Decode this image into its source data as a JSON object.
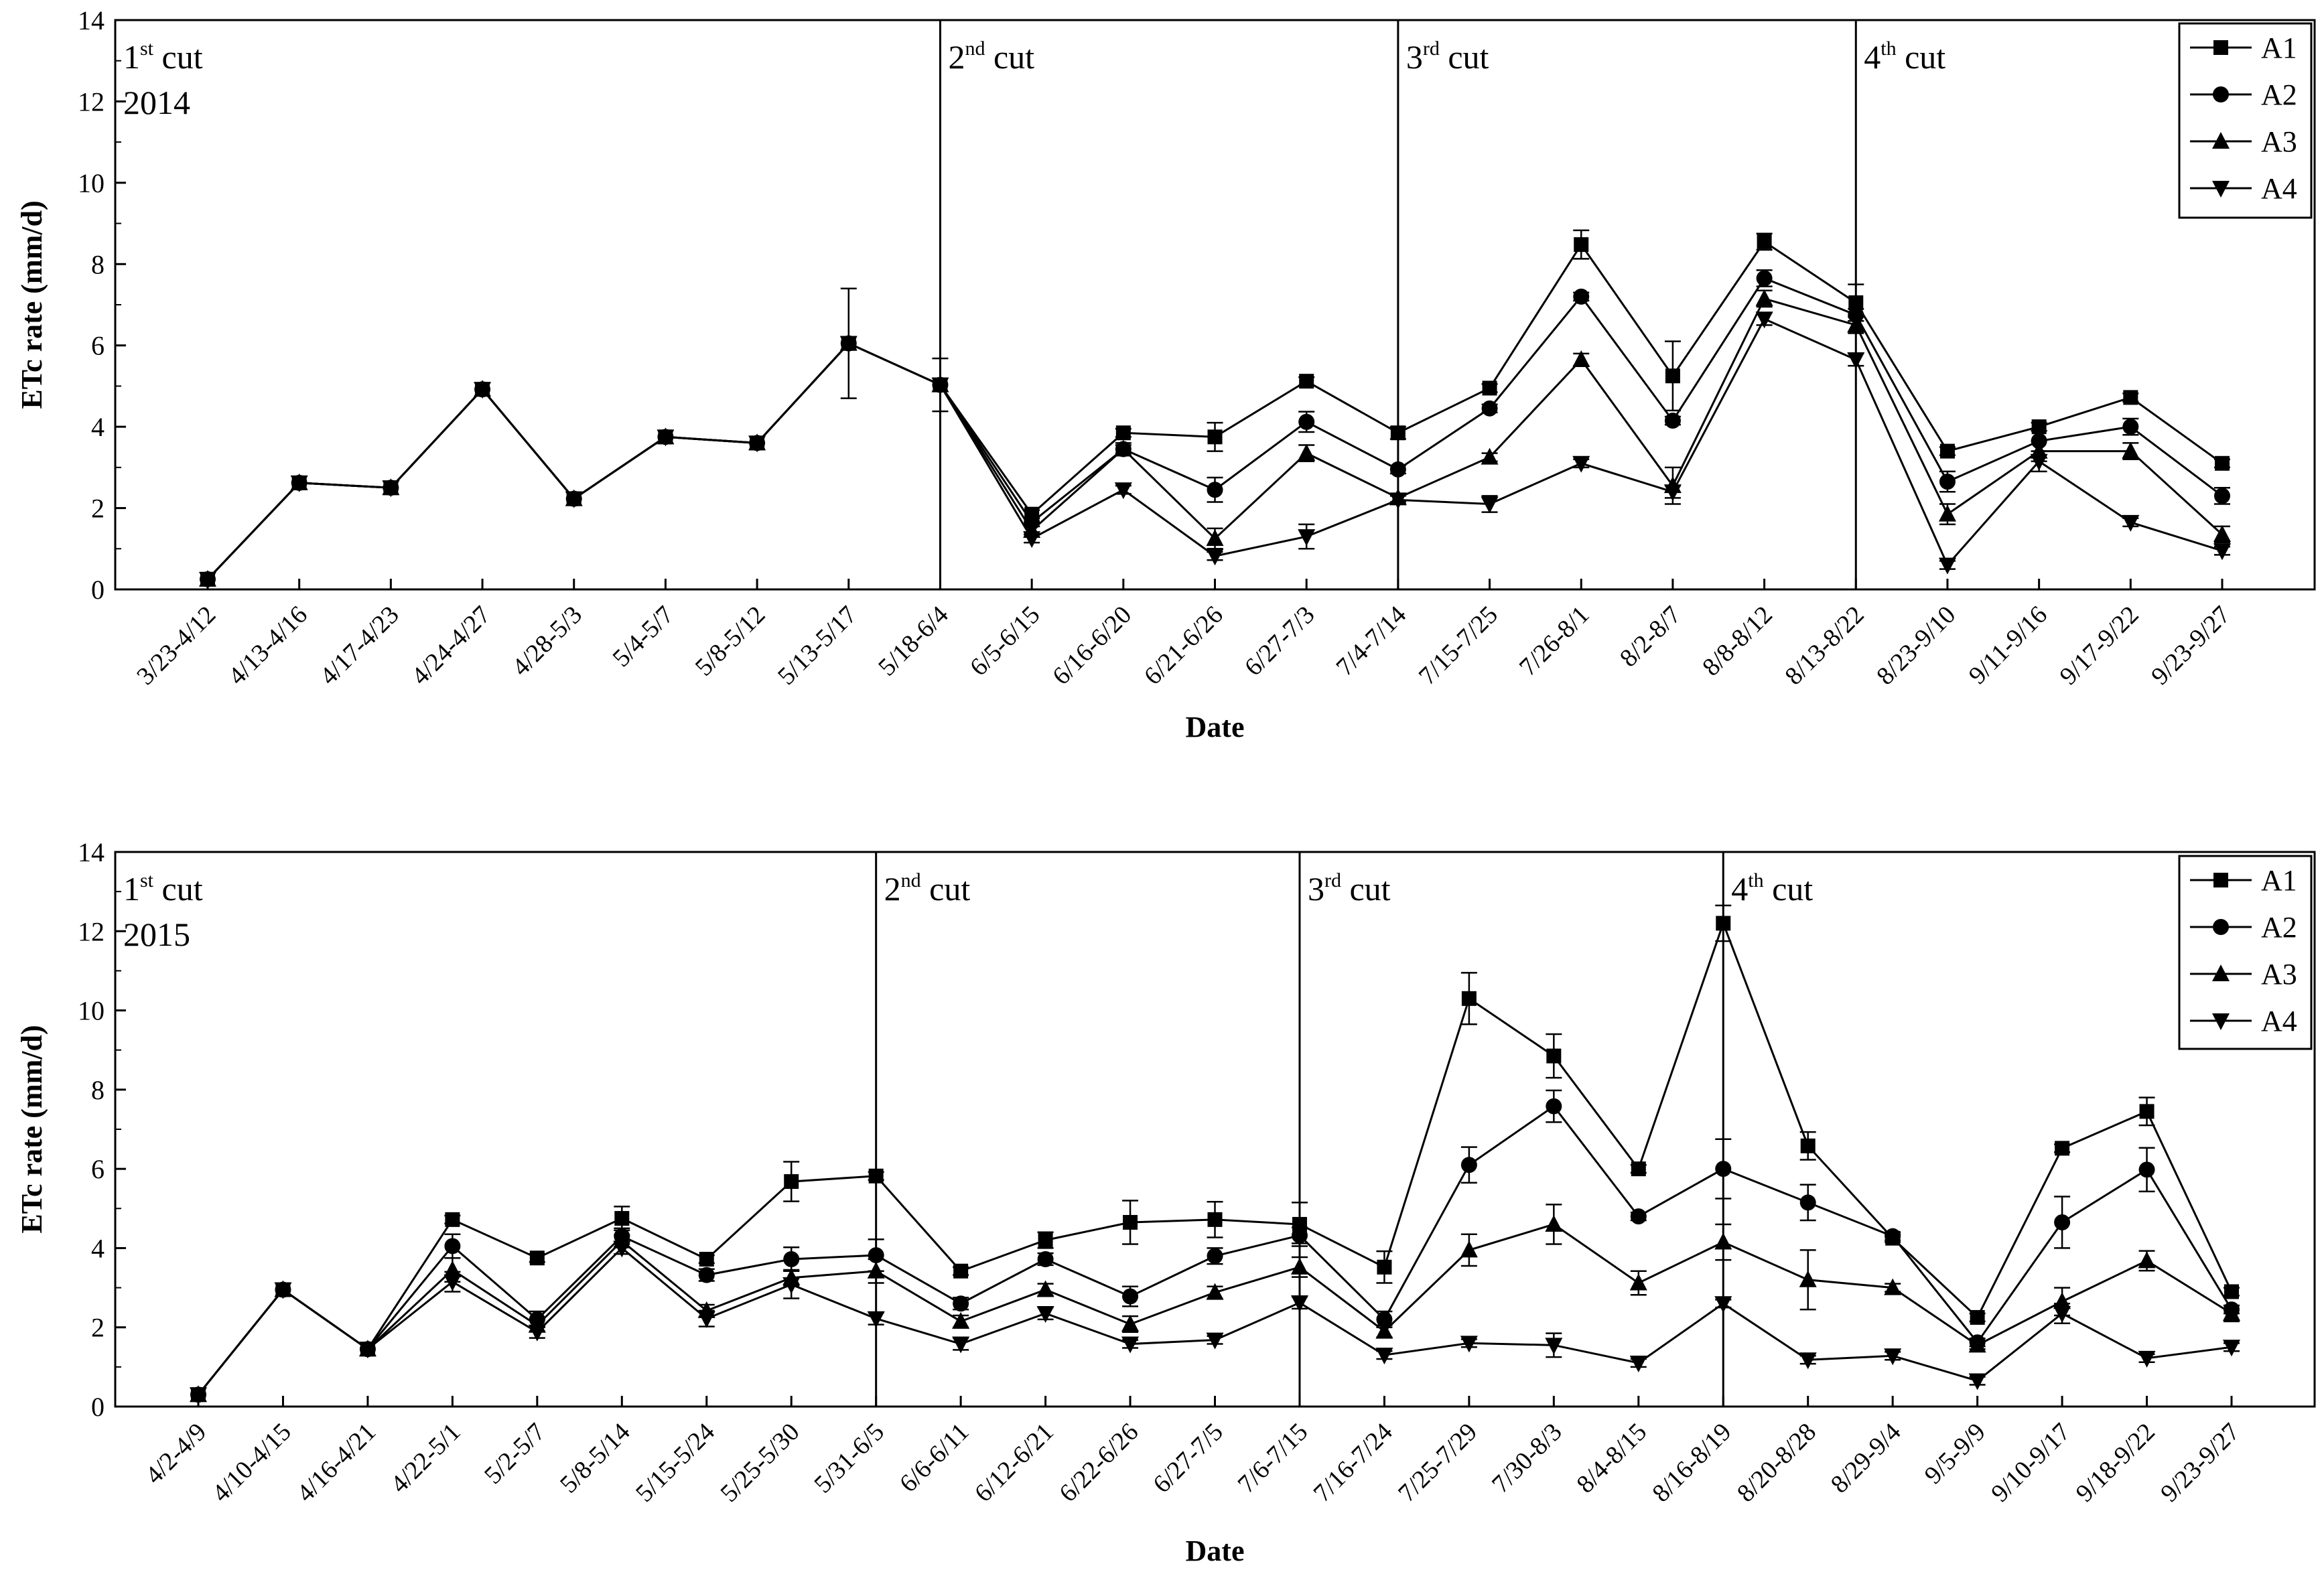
{
  "chart_data": [
    {
      "type": "line",
      "year_label": "2014",
      "xlabel": "Date",
      "ylabel": "ETc rate (mm/d)",
      "ylim": [
        0,
        14
      ],
      "yticks": [
        "0",
        "2",
        "4",
        "6",
        "8",
        "10",
        "12",
        "14"
      ],
      "legend_position": "top-right",
      "categories": [
        "3/23-4/12",
        "4/13-4/16",
        "4/17-4/23",
        "4/24-4/27",
        "4/28-5/3",
        "5/4-5/7",
        "5/8-5/12",
        "5/13-5/17",
        "5/18-6/4",
        "6/5-6/15",
        "6/16-6/20",
        "6/21-6/26",
        "6/27-7/3",
        "7/4-7/14",
        "7/15-7/25",
        "7/26-8/1",
        "8/2-8/7",
        "8/8-8/12",
        "8/13-8/22",
        "8/23-9/10",
        "9/11-9/16",
        "9/17-9/22",
        "9/23-9/27"
      ],
      "cuts": [
        {
          "num": "1",
          "sup": "st",
          "word": "cut",
          "category_index": 0
        },
        {
          "num": "2",
          "sup": "nd",
          "word": "cut",
          "category_index": 8
        },
        {
          "num": "3",
          "sup": "rd",
          "word": "cut",
          "category_index": 13
        },
        {
          "num": "4",
          "sup": "th",
          "word": "cut",
          "category_index": 18
        }
      ],
      "series": [
        {
          "name": "A1",
          "marker": "square",
          "values": [
            0.25,
            2.62,
            2.5,
            4.92,
            2.23,
            3.75,
            3.6,
            6.05,
            5.03,
            1.85,
            3.85,
            3.75,
            5.12,
            3.85,
            4.95,
            8.48,
            5.25,
            8.55,
            7.05,
            3.4,
            4.0,
            4.72,
            3.1
          ],
          "errors": [
            0,
            0,
            0,
            0,
            0,
            0,
            0,
            1.35,
            0.65,
            0.1,
            0.1,
            0.35,
            0.1,
            0.15,
            0.1,
            0.35,
            0.85,
            0.2,
            0.45,
            0.1,
            0.1,
            0.1,
            0.1
          ]
        },
        {
          "name": "A2",
          "marker": "circle",
          "values": [
            0.25,
            2.62,
            2.5,
            4.92,
            2.23,
            3.75,
            3.6,
            6.05,
            5.03,
            1.65,
            3.45,
            2.45,
            4.12,
            2.95,
            4.45,
            7.2,
            4.15,
            7.65,
            6.75,
            2.65,
            3.65,
            4.0,
            2.3
          ],
          "errors": [
            0,
            0,
            0,
            0,
            0,
            0,
            0,
            0,
            0,
            0.1,
            0.15,
            0.3,
            0.25,
            0.1,
            0.1,
            0.1,
            0.1,
            0.2,
            0.15,
            0.25,
            0.25,
            0.2,
            0.2
          ]
        },
        {
          "name": "A3",
          "marker": "triangle-up",
          "values": [
            0.25,
            2.62,
            2.5,
            4.92,
            2.23,
            3.75,
            3.6,
            6.05,
            5.03,
            1.45,
            3.45,
            1.25,
            3.35,
            2.25,
            3.25,
            5.65,
            2.55,
            7.15,
            6.5,
            1.85,
            3.4,
            3.4,
            1.35
          ],
          "errors": [
            0,
            0,
            0,
            0,
            0,
            0,
            0,
            0,
            0,
            0.1,
            0.1,
            0.25,
            0.2,
            0.1,
            0.1,
            0.15,
            0.45,
            0.2,
            0.2,
            0.25,
            0.25,
            0.2,
            0.2
          ]
        },
        {
          "name": "A4",
          "marker": "triangle-down",
          "values": [
            0.25,
            2.62,
            2.5,
            4.92,
            2.23,
            3.75,
            3.6,
            6.05,
            5.03,
            1.25,
            2.45,
            0.82,
            1.3,
            2.2,
            2.1,
            3.1,
            2.4,
            6.65,
            5.65,
            0.6,
            3.15,
            1.65,
            0.95
          ],
          "errors": [
            0,
            0,
            0,
            0,
            0,
            0,
            0,
            0,
            0,
            0.1,
            0.1,
            0.1,
            0.3,
            0.1,
            0.2,
            0.1,
            0.15,
            0.15,
            0.15,
            0.1,
            0.25,
            0.1,
            0.1
          ]
        }
      ]
    },
    {
      "type": "line",
      "year_label": "2015",
      "xlabel": "Date",
      "ylabel": "ETc rate (mm/d)",
      "ylim": [
        0,
        14
      ],
      "yticks": [
        "0",
        "2",
        "4",
        "6",
        "8",
        "10",
        "12",
        "14"
      ],
      "legend_position": "top-right",
      "categories": [
        "4/2-4/9",
        "4/10-4/15",
        "4/16-4/21",
        "4/22-5/1",
        "5/2-5/7",
        "5/8-5/14",
        "5/15-5/24",
        "5/25-5/30",
        "5/31-6/5",
        "6/6-6/11",
        "6/12-6/21",
        "6/22-6/26",
        "6/27-7/5",
        "7/6-7/15",
        "7/16-7/24",
        "7/25-7/29",
        "7/30-8/3",
        "8/4-8/15",
        "8/16-8/19",
        "8/20-8/28",
        "8/29-9/4",
        "9/5-9/9",
        "9/10-9/17",
        "9/18-9/22",
        "9/23-9/27"
      ],
      "cuts": [
        {
          "num": "1",
          "sup": "st",
          "word": "cut",
          "category_index": 0
        },
        {
          "num": "2",
          "sup": "nd",
          "word": "cut",
          "category_index": 8
        },
        {
          "num": "3",
          "sup": "rd",
          "word": "cut",
          "category_index": 13
        },
        {
          "num": "4",
          "sup": "th",
          "word": "cut",
          "category_index": 18
        }
      ],
      "series": [
        {
          "name": "A1",
          "marker": "square",
          "values": [
            0.3,
            2.95,
            1.45,
            4.72,
            3.75,
            4.75,
            3.72,
            5.68,
            5.82,
            3.42,
            4.2,
            4.65,
            4.72,
            4.6,
            3.52,
            10.3,
            8.85,
            6.0,
            12.2,
            6.58,
            4.25,
            2.25,
            6.52,
            7.45,
            2.9
          ],
          "errors": [
            0,
            0,
            0,
            0.1,
            0.1,
            0.3,
            0.1,
            0.5,
            0.1,
            0.1,
            0.2,
            0.55,
            0.45,
            0.55,
            0.4,
            0.65,
            0.55,
            0.1,
            0.45,
            0.35,
            0.1,
            0.1,
            0.1,
            0.35,
            0.1
          ]
        },
        {
          "name": "A2",
          "marker": "circle",
          "values": [
            0.3,
            2.95,
            1.45,
            4.05,
            2.2,
            4.3,
            3.32,
            3.72,
            3.82,
            2.6,
            3.72,
            2.78,
            3.8,
            4.32,
            2.2,
            6.1,
            7.58,
            4.8,
            6.0,
            5.15,
            4.3,
            1.62,
            4.65,
            5.98,
            2.45
          ],
          "errors": [
            0,
            0,
            0,
            0.3,
            0.2,
            0.2,
            0.15,
            0.3,
            0.4,
            0.15,
            0.15,
            0.25,
            0.2,
            0.2,
            0.2,
            0.45,
            0.4,
            0.1,
            0.75,
            0.45,
            0.1,
            0.1,
            0.65,
            0.55,
            0.1
          ]
        },
        {
          "name": "A3",
          "marker": "triangle-up",
          "values": [
            0.3,
            2.95,
            1.45,
            3.45,
            2.05,
            4.18,
            2.42,
            3.25,
            3.42,
            2.15,
            2.95,
            2.08,
            2.88,
            3.52,
            1.9,
            3.95,
            4.6,
            3.12,
            4.15,
            3.2,
            3.0,
            1.55,
            2.65,
            3.68,
            2.35
          ],
          "errors": [
            0,
            0,
            0,
            0.3,
            0.15,
            0.15,
            0.15,
            0.2,
            0.3,
            0.15,
            0.15,
            0.2,
            0.15,
            0.25,
            0.15,
            0.4,
            0.5,
            0.3,
            0.45,
            0.75,
            0.1,
            0.1,
            0.35,
            0.25,
            0.2
          ]
        },
        {
          "name": "A4",
          "marker": "triangle-down",
          "values": [
            0.3,
            2.95,
            1.45,
            3.15,
            1.88,
            4.0,
            2.22,
            3.08,
            2.22,
            1.58,
            2.35,
            1.58,
            1.68,
            2.62,
            1.3,
            1.6,
            1.55,
            1.1,
            2.6,
            1.18,
            1.28,
            0.65,
            2.35,
            1.22,
            1.5
          ],
          "errors": [
            0,
            0,
            0,
            0.25,
            0.15,
            0.15,
            0.2,
            0.35,
            0.15,
            0.15,
            0.15,
            0.1,
            0.1,
            0.15,
            0.1,
            0.1,
            0.3,
            0.1,
            0.1,
            0.1,
            0.1,
            0.1,
            0.25,
            0.1,
            0.1
          ]
        }
      ]
    }
  ]
}
